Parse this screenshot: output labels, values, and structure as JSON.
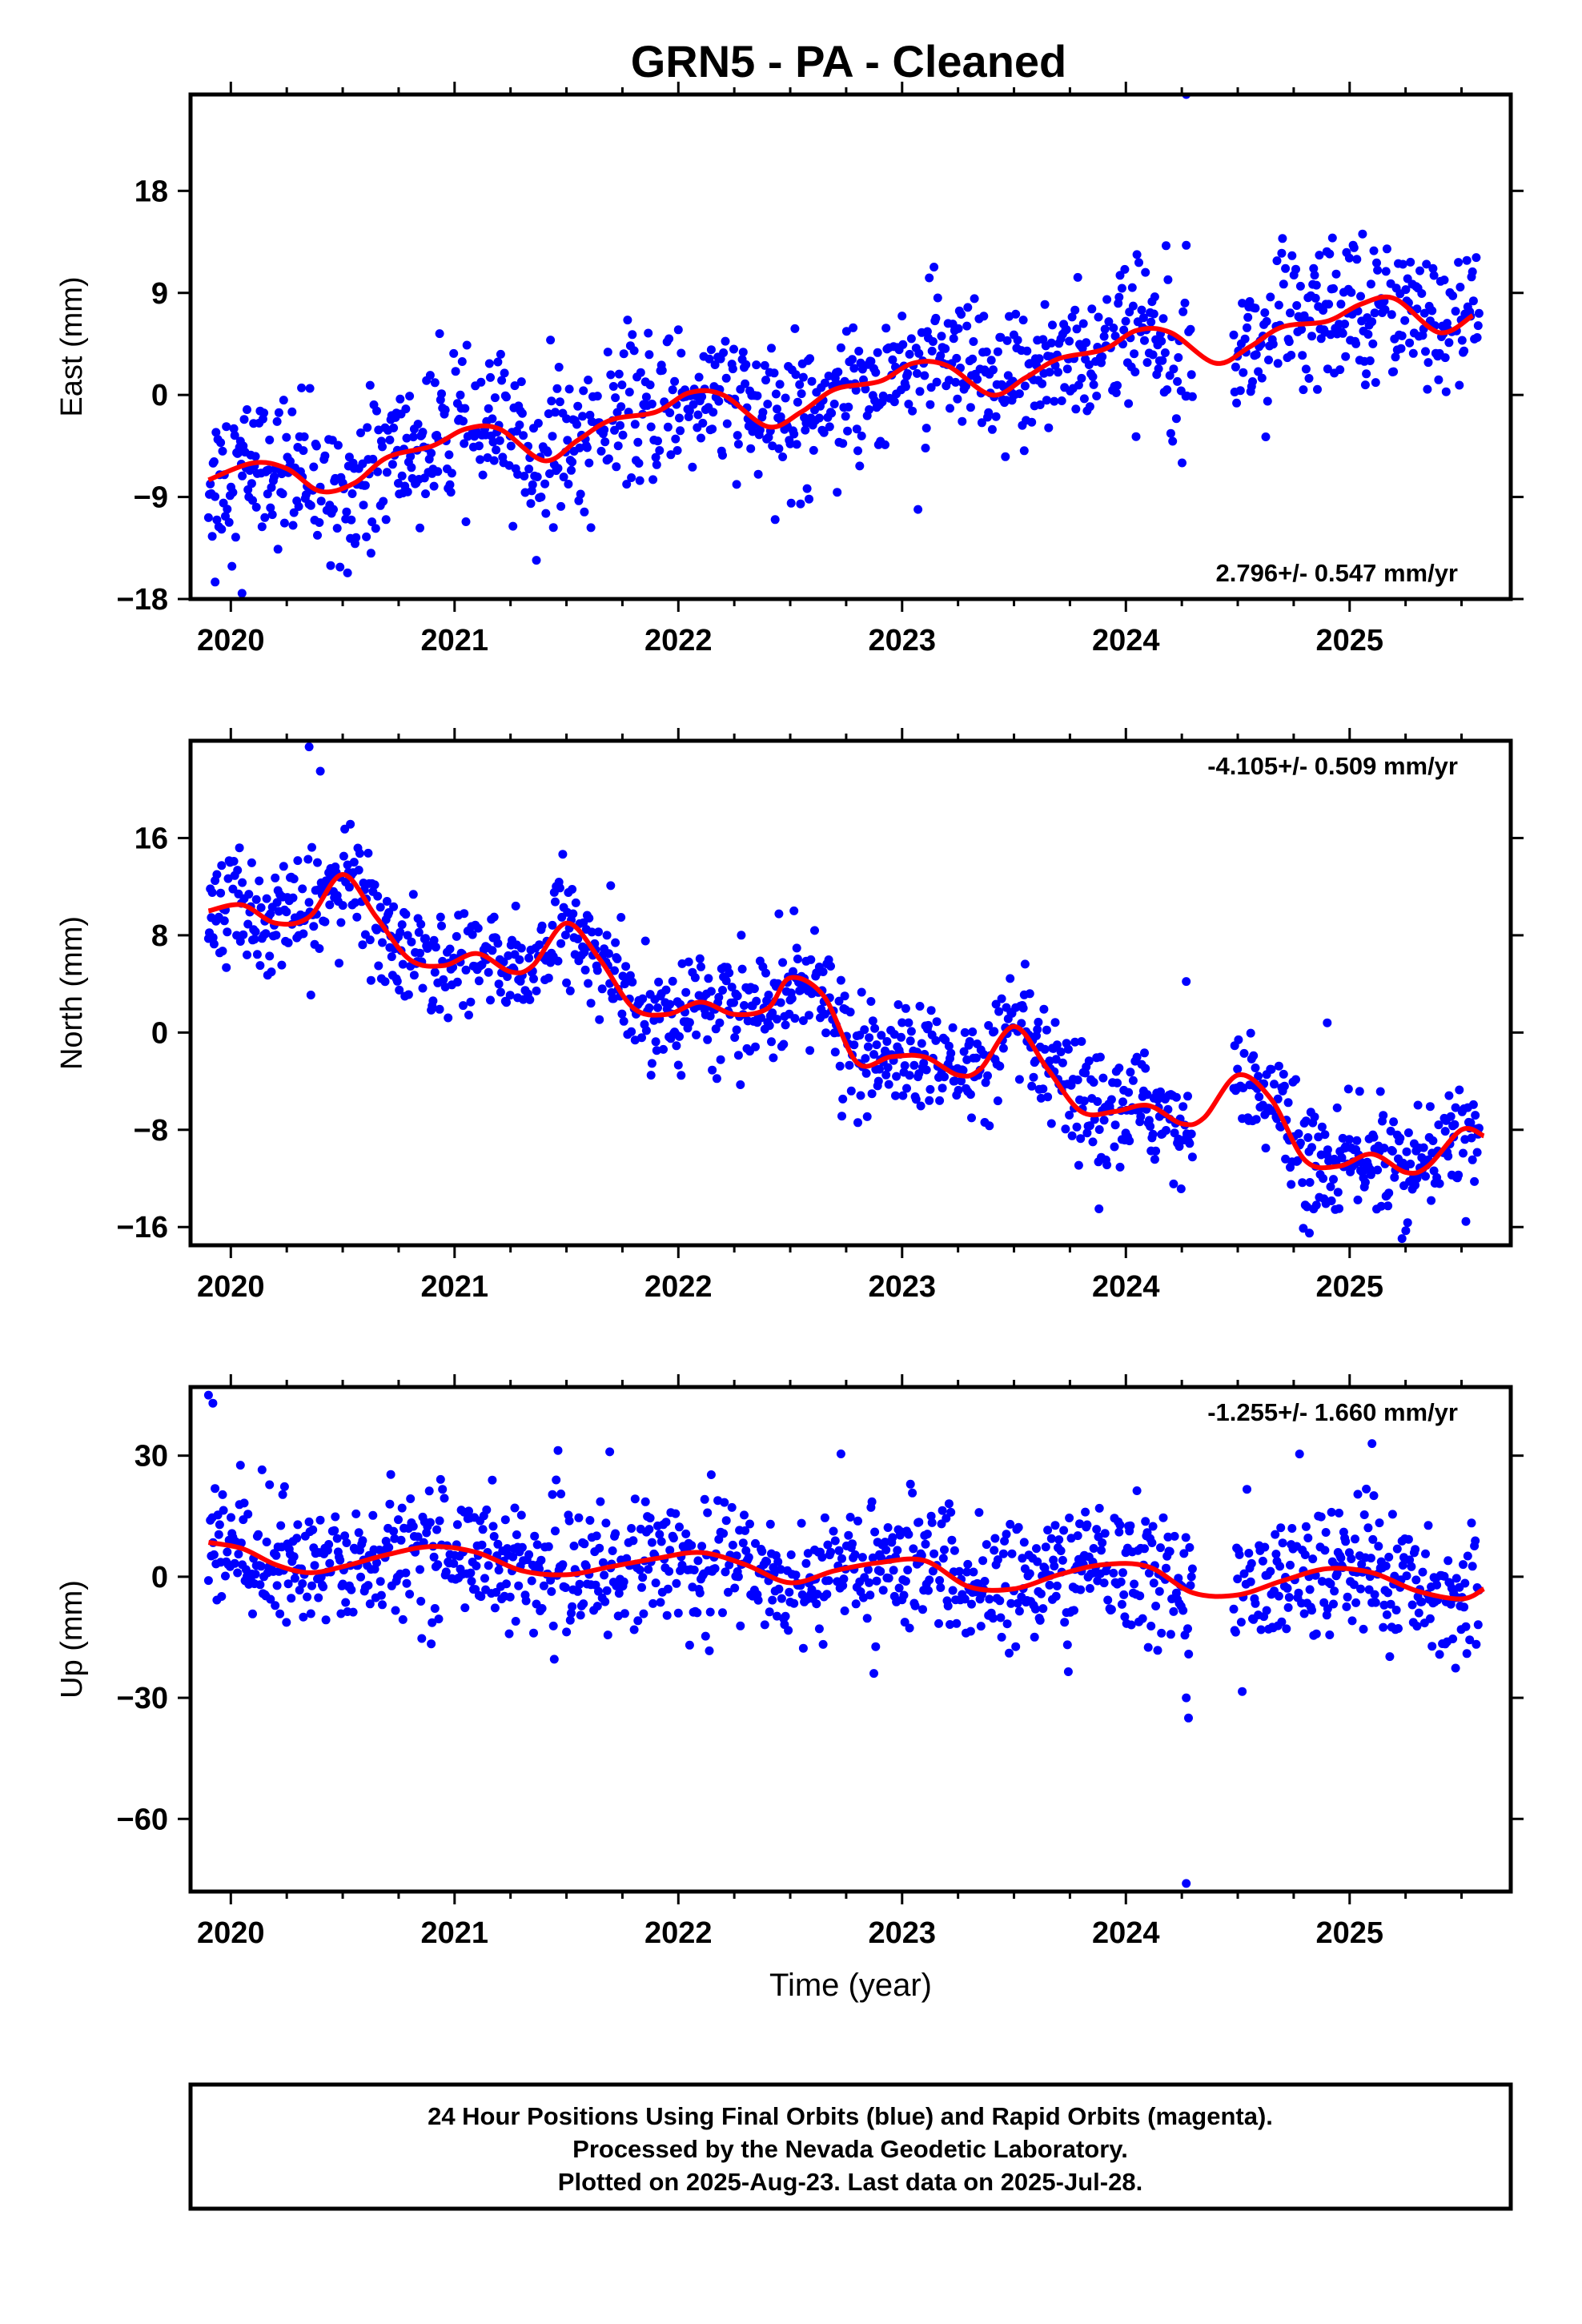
{
  "title": "GRN5  - PA - Cleaned",
  "chart_data": [
    {
      "type": "scatter",
      "ylabel": "East (mm)",
      "xlabel": "",
      "xlim": [
        2019.82,
        2025.72
      ],
      "ylim": [
        -18,
        26.5
      ],
      "xticks": [
        2020,
        2021,
        2022,
        2023,
        2024,
        2025
      ],
      "yticks": [
        18,
        9,
        0,
        -9,
        -18
      ],
      "rate_label": "2.796+/- 0.547 mm/yr",
      "rate_position": "bottom-right",
      "fit_line": {
        "color": "#ff0000",
        "x": [
          2019.9,
          2020.1,
          2020.25,
          2020.4,
          2020.55,
          2020.7,
          2020.9,
          2021.05,
          2021.2,
          2021.4,
          2021.55,
          2021.7,
          2021.9,
          2022.05,
          2022.2,
          2022.4,
          2022.55,
          2022.7,
          2022.9,
          2023.05,
          2023.2,
          2023.4,
          2023.55,
          2023.7,
          2023.9,
          2024.05,
          2024.2,
          2024.4,
          2024.55,
          2024.7,
          2024.9,
          2025.05,
          2025.2,
          2025.4,
          2025.55
        ],
        "y": [
          -7.5,
          -6.0,
          -6.5,
          -8.5,
          -7.8,
          -5.5,
          -4.5,
          -3.0,
          -3.0,
          -5.8,
          -4.0,
          -2.2,
          -1.5,
          0.2,
          0.0,
          -2.8,
          -1.5,
          0.5,
          1.2,
          2.8,
          2.6,
          0.0,
          1.5,
          3.2,
          4.0,
          5.7,
          5.5,
          2.8,
          4.2,
          6.0,
          6.5,
          8.0,
          8.5,
          5.5,
          7.0
        ]
      },
      "points": {
        "color": "#0000ff",
        "trend": [
          2.796,
          -8.5
        ],
        "seasonal_amp": 1.8,
        "scatter": 3.2,
        "outliers": [
          [
            2024.27,
            26.5
          ],
          [
            2024.27,
            13.2
          ],
          [
            2024.7,
            13.8
          ],
          [
            2019.93,
            -16.5
          ],
          [
            2020.05,
            -17.5
          ]
        ]
      }
    },
    {
      "type": "scatter",
      "ylabel": "North (mm)",
      "xlabel": "",
      "xlim": [
        2019.82,
        2025.72
      ],
      "ylim": [
        -17.5,
        24
      ],
      "xticks": [
        2020,
        2021,
        2022,
        2023,
        2024,
        2025
      ],
      "yticks": [
        16,
        8,
        0,
        -8,
        -16
      ],
      "rate_label": "-4.105+/- 0.509 mm/yr",
      "rate_position": "top-right",
      "fit_line": {
        "color": "#ff0000",
        "x": [
          2019.9,
          2020.05,
          2020.2,
          2020.35,
          2020.5,
          2020.65,
          2020.8,
          2020.95,
          2021.1,
          2021.25,
          2021.35,
          2021.5,
          2021.65,
          2021.8,
          2021.95,
          2022.1,
          2022.25,
          2022.4,
          2022.5,
          2022.65,
          2022.8,
          2022.95,
          2023.1,
          2023.25,
          2023.35,
          2023.5,
          2023.65,
          2023.8,
          2023.95,
          2024.1,
          2024.25,
          2024.35,
          2024.5,
          2024.65,
          2024.8,
          2024.95,
          2025.1,
          2025.25,
          2025.35,
          2025.5,
          2025.6
        ],
        "y": [
          10.0,
          10.5,
          9.0,
          9.5,
          13.0,
          9.5,
          6.0,
          5.5,
          6.5,
          5.0,
          5.5,
          9.0,
          6.0,
          2.0,
          1.5,
          2.5,
          1.5,
          2.0,
          4.5,
          3.0,
          -2.5,
          -2.0,
          -2.0,
          -3.5,
          -3.0,
          0.5,
          -3.0,
          -6.5,
          -6.5,
          -6.0,
          -7.5,
          -7.0,
          -3.5,
          -5.5,
          -10.5,
          -11.0,
          -10.0,
          -11.5,
          -11.0,
          -8.0,
          -8.5
        ]
      },
      "points": {
        "color": "#0000ff",
        "trend": [
          -4.105,
          11.0
        ],
        "seasonal_amp": 2.5,
        "scatter": 2.2,
        "outliers": [
          [
            2020.35,
            23.5
          ],
          [
            2020.4,
            21.5
          ],
          [
            2024.27,
            4.2
          ],
          [
            2024.82,
            -16.5
          ],
          [
            2023.88,
            -14.5
          ],
          [
            2024.9,
            0.8
          ]
        ]
      }
    },
    {
      "type": "scatter",
      "ylabel": "Up (mm)",
      "xlabel": "Time (year)",
      "xlim": [
        2019.82,
        2025.72
      ],
      "ylim": [
        -78,
        47
      ],
      "xticks": [
        2020,
        2021,
        2022,
        2023,
        2024,
        2025
      ],
      "yticks": [
        30,
        0,
        -30,
        -60
      ],
      "rate_label": "-1.255+/- 1.660 mm/yr",
      "rate_position": "top-right",
      "fit_line": {
        "color": "#ff0000",
        "x": [
          2019.9,
          2020.05,
          2020.2,
          2020.35,
          2020.5,
          2020.7,
          2020.9,
          2021.1,
          2021.3,
          2021.5,
          2021.7,
          2021.9,
          2022.1,
          2022.3,
          2022.5,
          2022.7,
          2022.9,
          2023.1,
          2023.3,
          2023.5,
          2023.7,
          2023.9,
          2024.1,
          2024.3,
          2024.5,
          2024.7,
          2024.9,
          2025.1,
          2025.3,
          2025.5,
          2025.6
        ],
        "y": [
          8.5,
          7.0,
          3.0,
          1.0,
          2.5,
          5.5,
          7.5,
          6.0,
          1.5,
          0.5,
          2.5,
          4.5,
          6.0,
          3.0,
          -1.5,
          1.5,
          3.5,
          4.0,
          -2.5,
          -3.0,
          0.5,
          3.0,
          2.5,
          -4.0,
          -4.5,
          -1.0,
          2.0,
          1.0,
          -3.5,
          -5.5,
          -3.0
        ]
      },
      "points": {
        "color": "#0000ff",
        "trend": [
          -1.255,
          4.0
        ],
        "seasonal_amp": 5.5,
        "scatter": 8.0,
        "outliers": [
          [
            2019.9,
            45.0
          ],
          [
            2019.92,
            43.0
          ],
          [
            2024.27,
            -30.0
          ],
          [
            2024.28,
            -35.0
          ],
          [
            2024.27,
            -76.0
          ],
          [
            2025.1,
            33.0
          ]
        ]
      }
    }
  ],
  "footer": {
    "line1": "24 Hour Positions Using Final Orbits (blue) and Rapid Orbits (magenta).",
    "line2": "Processed by the Nevada Geodetic Laboratory.",
    "line3": "Plotted on 2025-Aug-23. Last data on 2025-Jul-28."
  }
}
